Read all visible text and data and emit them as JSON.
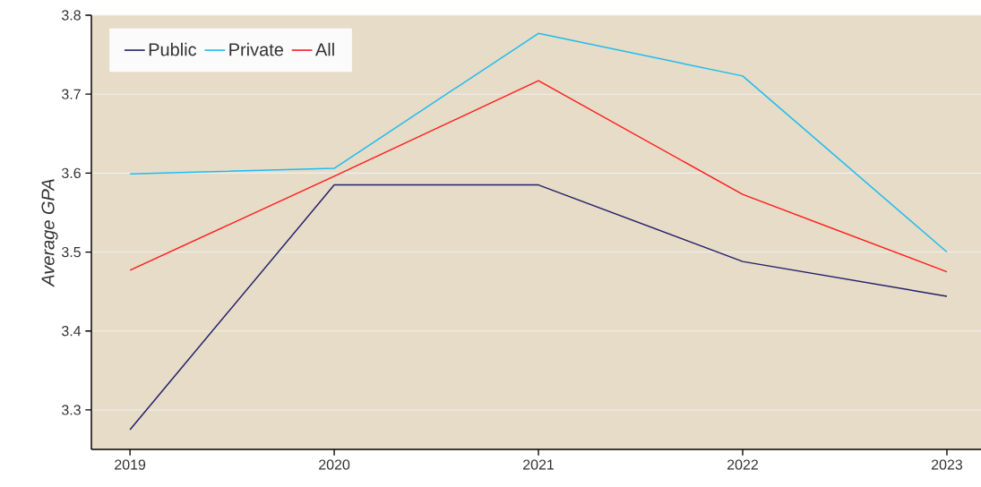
{
  "chart_data": {
    "type": "line",
    "ylabel": "Average GPA",
    "categories": [
      "2019",
      "2020",
      "2021",
      "2022",
      "2023"
    ],
    "series": [
      {
        "name": "Public",
        "color": "#231f6b",
        "values": [
          3.275,
          3.585,
          3.585,
          3.488,
          3.444
        ]
      },
      {
        "name": "Private",
        "color": "#1ebcf0",
        "values": [
          3.599,
          3.606,
          3.777,
          3.723,
          3.5
        ]
      },
      {
        "name": "All",
        "color": "#ff1a1a",
        "values": [
          3.477,
          3.596,
          3.717,
          3.573,
          3.475
        ]
      }
    ],
    "ylim": [
      3.25,
      3.8
    ],
    "yticks": [
      3.3,
      3.4,
      3.5,
      3.6,
      3.7,
      3.8
    ],
    "grid": "y",
    "legend": "top left",
    "marker": "none",
    "line_style": "solid"
  }
}
